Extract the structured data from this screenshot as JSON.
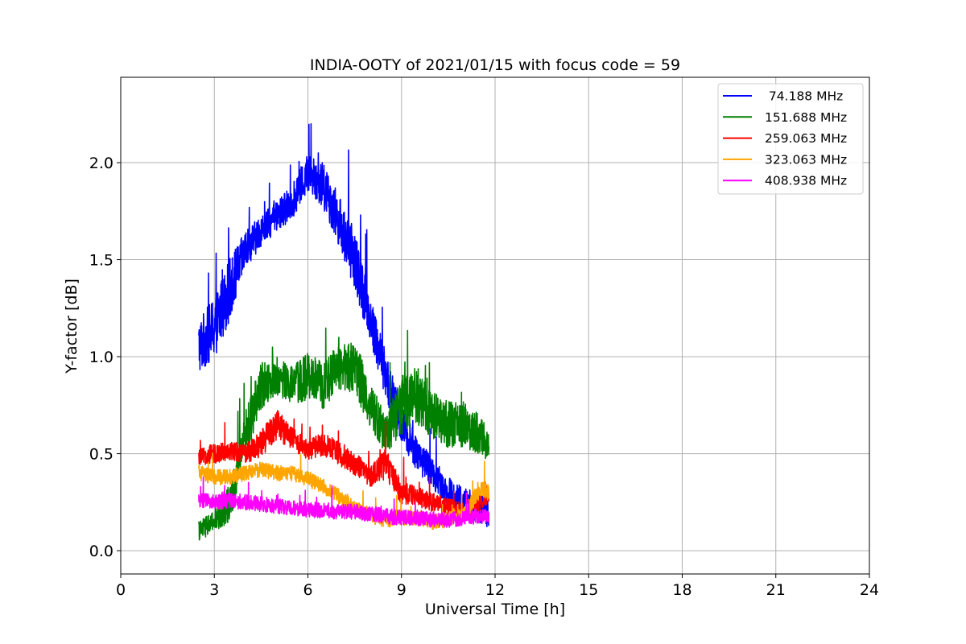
{
  "chart_data": {
    "type": "line",
    "title": "INDIA-OOTY of 2021/01/15 with focus code = 59",
    "xlabel": "Universal Time [h]",
    "ylabel": "Y-factor [dB]",
    "xlim": [
      0,
      24
    ],
    "ylim": [
      -0.12,
      2.44
    ],
    "xticks": [
      0,
      3,
      6,
      9,
      12,
      15,
      18,
      21,
      24
    ],
    "yticks": [
      0.0,
      0.5,
      1.0,
      1.5,
      2.0
    ],
    "xtick_labels": [
      "0",
      "3",
      "6",
      "9",
      "12",
      "15",
      "18",
      "21",
      "24"
    ],
    "ytick_labels": [
      "0.0",
      "0.5",
      "1.0",
      "1.5",
      "2.0"
    ],
    "grid": true,
    "legend_position": "top-right",
    "series": [
      {
        "name": " 74.188 MHz",
        "color": "#0000ff",
        "x": [
          2.5,
          3.0,
          3.5,
          4.0,
          4.5,
          5.0,
          5.5,
          6.0,
          6.5,
          7.0,
          7.5,
          8.0,
          8.5,
          9.0,
          9.5,
          10.0,
          10.5,
          11.0,
          11.5,
          11.8
        ],
        "y": [
          1.05,
          1.15,
          1.35,
          1.55,
          1.65,
          1.72,
          1.8,
          1.95,
          1.88,
          1.7,
          1.5,
          1.2,
          0.9,
          0.65,
          0.5,
          0.4,
          0.3,
          0.25,
          0.22,
          0.2
        ],
        "noise": [
          0.14,
          0.16,
          0.16,
          0.1,
          0.08,
          0.08,
          0.09,
          0.1,
          0.12,
          0.13,
          0.15,
          0.13,
          0.12,
          0.1,
          0.09,
          0.08,
          0.08,
          0.08,
          0.08,
          0.08
        ]
      },
      {
        "name": "151.688 MHz",
        "color": "#008000",
        "x": [
          2.5,
          3.0,
          3.5,
          4.0,
          4.5,
          5.0,
          5.5,
          6.0,
          6.5,
          7.0,
          7.5,
          8.0,
          8.5,
          9.0,
          9.5,
          10.0,
          10.5,
          11.0,
          11.5,
          11.8
        ],
        "y": [
          0.1,
          0.15,
          0.25,
          0.6,
          0.85,
          0.9,
          0.85,
          0.9,
          0.85,
          0.95,
          0.95,
          0.75,
          0.6,
          0.75,
          0.8,
          0.7,
          0.65,
          0.65,
          0.6,
          0.55
        ],
        "noise": [
          0.05,
          0.06,
          0.1,
          0.12,
          0.12,
          0.1,
          0.1,
          0.12,
          0.12,
          0.12,
          0.14,
          0.12,
          0.1,
          0.15,
          0.15,
          0.12,
          0.12,
          0.12,
          0.1,
          0.1
        ]
      },
      {
        "name": "259.063 MHz",
        "color": "#ff0000",
        "x": [
          2.5,
          3.0,
          3.5,
          4.0,
          4.5,
          5.0,
          5.5,
          6.0,
          6.5,
          7.0,
          7.5,
          8.0,
          8.5,
          9.0,
          9.5,
          10.0,
          10.5,
          11.0,
          11.5,
          11.8
        ],
        "y": [
          0.48,
          0.5,
          0.52,
          0.5,
          0.55,
          0.65,
          0.58,
          0.52,
          0.55,
          0.5,
          0.45,
          0.38,
          0.45,
          0.3,
          0.28,
          0.25,
          0.22,
          0.2,
          0.25,
          0.3
        ],
        "noise": [
          0.04,
          0.05,
          0.05,
          0.05,
          0.07,
          0.08,
          0.06,
          0.05,
          0.06,
          0.06,
          0.06,
          0.05,
          0.08,
          0.06,
          0.05,
          0.05,
          0.05,
          0.05,
          0.05,
          0.05
        ]
      },
      {
        "name": "323.063 MHz",
        "color": "#ffa500",
        "x": [
          2.5,
          3.0,
          3.5,
          4.0,
          4.5,
          5.0,
          5.5,
          6.0,
          6.5,
          7.0,
          7.5,
          8.0,
          8.5,
          9.0,
          9.5,
          10.0,
          10.5,
          11.0,
          11.5,
          11.8
        ],
        "y": [
          0.4,
          0.38,
          0.38,
          0.4,
          0.42,
          0.4,
          0.4,
          0.37,
          0.33,
          0.28,
          0.22,
          0.18,
          0.16,
          0.17,
          0.17,
          0.15,
          0.16,
          0.18,
          0.32,
          0.3
        ],
        "noise": [
          0.04,
          0.04,
          0.04,
          0.04,
          0.04,
          0.04,
          0.04,
          0.04,
          0.04,
          0.04,
          0.04,
          0.04,
          0.04,
          0.04,
          0.04,
          0.04,
          0.04,
          0.04,
          0.05,
          0.04
        ]
      },
      {
        "name": "408.938 MHz",
        "color": "#ff00ff",
        "x": [
          2.5,
          3.0,
          3.5,
          4.0,
          4.5,
          5.0,
          5.5,
          6.0,
          6.5,
          7.0,
          7.5,
          8.0,
          8.5,
          9.0,
          9.5,
          10.0,
          10.5,
          11.0,
          11.5,
          11.8
        ],
        "y": [
          0.26,
          0.25,
          0.26,
          0.25,
          0.24,
          0.23,
          0.22,
          0.21,
          0.21,
          0.2,
          0.2,
          0.19,
          0.18,
          0.17,
          0.17,
          0.16,
          0.16,
          0.17,
          0.18,
          0.18
        ],
        "noise": [
          0.04,
          0.04,
          0.04,
          0.04,
          0.04,
          0.04,
          0.04,
          0.04,
          0.04,
          0.04,
          0.04,
          0.04,
          0.04,
          0.04,
          0.04,
          0.04,
          0.04,
          0.04,
          0.04,
          0.04
        ]
      }
    ]
  }
}
